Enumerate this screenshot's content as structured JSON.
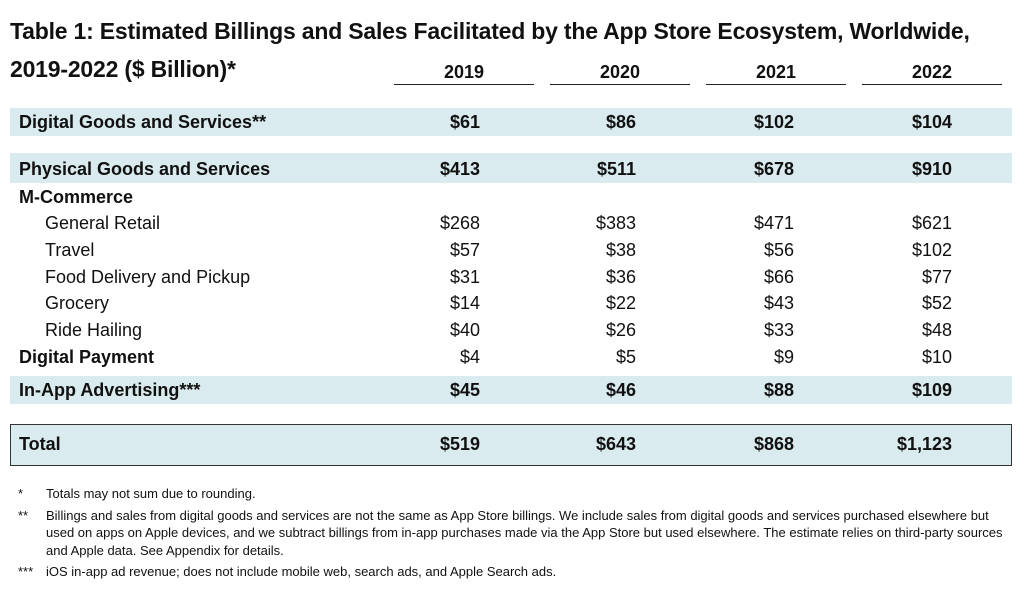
{
  "title_line1": "Table 1: Estimated Billings and Sales Facilitated by the App Store Ecosystem, Worldwide,",
  "title_line2": "2019-2022 ($ Billion)*",
  "years": [
    "2019",
    "2020",
    "2021",
    "2022"
  ],
  "rows": [
    {
      "label": "Digital Goods and Services**",
      "values": [
        "$61",
        "$86",
        "$102",
        "$104"
      ]
    },
    {
      "label": "Physical Goods and Services",
      "values": [
        "$413",
        "$511",
        "$678",
        "$910"
      ]
    },
    {
      "label": "M-Commerce",
      "values": [
        "",
        "",
        "",
        ""
      ]
    },
    {
      "label": "General Retail",
      "values": [
        "$268",
        "$383",
        "$471",
        "$621"
      ]
    },
    {
      "label": "Travel",
      "values": [
        "$57",
        "$38",
        "$56",
        "$102"
      ]
    },
    {
      "label": "Food Delivery and Pickup",
      "values": [
        "$31",
        "$36",
        "$66",
        "$77"
      ]
    },
    {
      "label": "Grocery",
      "values": [
        "$14",
        "$22",
        "$43",
        "$52"
      ]
    },
    {
      "label": "Ride Hailing",
      "values": [
        "$40",
        "$26",
        "$33",
        "$48"
      ]
    },
    {
      "label": "Digital Payment",
      "values": [
        "$4",
        "$5",
        "$9",
        "$10"
      ]
    },
    {
      "label": "In-App Advertising***",
      "values": [
        "$45",
        "$46",
        "$88",
        "$109"
      ]
    },
    {
      "label": "Total",
      "values": [
        "$519",
        "$643",
        "$868",
        "$1,123"
      ]
    }
  ],
  "notes": [
    {
      "mark": "*",
      "text": "Totals may not sum due to rounding."
    },
    {
      "mark": "**",
      "text": "Billings and sales from digital goods and services are not the same as App Store billings. We include sales from digital goods and services purchased elsewhere but used on apps on Apple devices, and we subtract billings from in-app purchases made via the App Store but used elsewhere. The estimate relies on third-party sources and Apple data. See Appendix for details."
    },
    {
      "mark": "***",
      "text": "iOS in-app ad revenue; does not include mobile web, search ads, and Apple Search ads."
    }
  ],
  "colors": {
    "band": "#d9ebee",
    "text": "#111111"
  }
}
